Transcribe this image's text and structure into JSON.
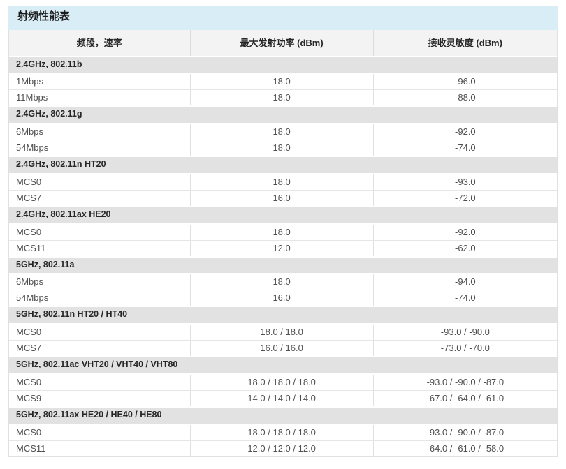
{
  "table": {
    "title": "射频性能表",
    "columns": [
      "频段，速率",
      "最大发射功率 (dBm)",
      "接收灵敏度 (dBm)"
    ],
    "sections": [
      {
        "header": "2.4GHz, 802.11b",
        "rows": [
          [
            "1Mbps",
            "18.0",
            "-96.0"
          ],
          [
            "11Mbps",
            "18.0",
            "-88.0"
          ]
        ]
      },
      {
        "header": "2.4GHz, 802.11g",
        "rows": [
          [
            "6Mbps",
            "18.0",
            "-92.0"
          ],
          [
            "54Mbps",
            "18.0",
            "-74.0"
          ]
        ]
      },
      {
        "header": "2.4GHz, 802.11n HT20",
        "rows": [
          [
            "MCS0",
            "18.0",
            "-93.0"
          ],
          [
            "MCS7",
            "16.0",
            "-72.0"
          ]
        ]
      },
      {
        "header": "2.4GHz, 802.11ax HE20",
        "rows": [
          [
            "MCS0",
            "18.0",
            "-92.0"
          ],
          [
            "MCS11",
            "12.0",
            "-62.0"
          ]
        ]
      },
      {
        "header": "5GHz, 802.11a",
        "rows": [
          [
            "6Mbps",
            "18.0",
            "-94.0"
          ],
          [
            "54Mbps",
            "16.0",
            "-74.0"
          ]
        ]
      },
      {
        "header": "5GHz, 802.11n HT20 / HT40",
        "rows": [
          [
            "MCS0",
            "18.0 / 18.0",
            "-93.0 / -90.0"
          ],
          [
            "MCS7",
            "16.0 / 16.0",
            "-73.0 / -70.0"
          ]
        ]
      },
      {
        "header": "5GHz, 802.11ac VHT20 / VHT40 / VHT80",
        "rows": [
          [
            "MCS0",
            "18.0 / 18.0 / 18.0",
            "-93.0 / -90.0 / -87.0"
          ],
          [
            "MCS9",
            "14.0 / 14.0 / 14.0",
            "-67.0 / -64.0 / -61.0"
          ]
        ]
      },
      {
        "header": "5GHz, 802.11ax HE20 / HE40 / HE80",
        "rows": [
          [
            "MCS0",
            "18.0 / 18.0 / 18.0",
            "-93.0 / -90.0 / -87.0"
          ],
          [
            "MCS11",
            "12.0 / 12.0 / 12.0",
            "-64.0 / -61.0 / -58.0"
          ]
        ]
      }
    ],
    "colors": {
      "title_bar_bg": "#d9edf7",
      "column_header_bg": "#f3f3f3",
      "section_header_bg": "#e2e2e2",
      "row_bg": "#ffffff",
      "border": "#e0e0e0",
      "title_text": "#1c1c1c",
      "data_text": "#4f4f4f"
    }
  }
}
